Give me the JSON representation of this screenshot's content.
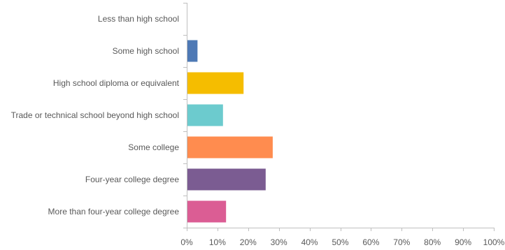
{
  "chart_data": {
    "type": "bar",
    "orientation": "horizontal",
    "categories": [
      "Less than high school",
      "Some high school",
      "High school diploma or equivalent",
      "Trade or technical school beyond high school",
      "Some college",
      "Four-year college degree",
      "More than four-year college degree"
    ],
    "values": [
      0,
      3.5,
      18.5,
      11.8,
      28,
      25.7,
      12.8
    ],
    "colors": [
      "#4E79B5",
      "#4E79B5",
      "#F5BD00",
      "#6CCBCE",
      "#FF8C4F",
      "#7B5C92",
      "#DB5D94"
    ],
    "xlim": [
      0,
      100
    ],
    "xticks": [
      0,
      10,
      20,
      30,
      40,
      50,
      60,
      70,
      80,
      90,
      100
    ],
    "xtick_suffix": "%",
    "title": "",
    "xlabel": "",
    "ylabel": "",
    "grid": false,
    "legend": "none"
  }
}
